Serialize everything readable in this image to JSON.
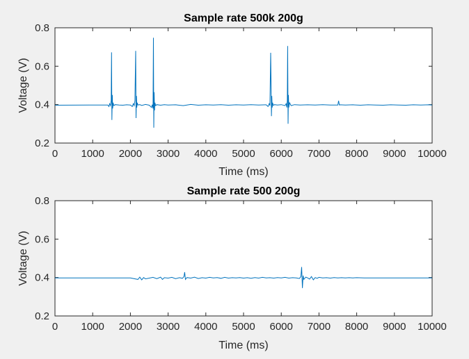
{
  "chart_data": [
    {
      "type": "line",
      "title": "Sample rate 500k 200g",
      "xlabel": "Time (ms)",
      "ylabel": "Voltage (V)",
      "xlim": [
        0,
        10000
      ],
      "ylim": [
        0.2,
        0.8
      ],
      "xticks": [
        0,
        1000,
        2000,
        3000,
        4000,
        5000,
        6000,
        7000,
        8000,
        9000,
        10000
      ],
      "xtick_labels": [
        "0",
        "1000",
        "2000",
        "3000",
        "4000",
        "5000",
        "6000",
        "7000",
        "8000",
        "9000",
        "10000"
      ],
      "yticks": [
        0.2,
        0.4,
        0.6,
        0.8
      ],
      "ytick_labels": [
        "0.2",
        "0.4",
        "0.6",
        "0.8"
      ],
      "grid": false,
      "line_color": "#0072bd",
      "series": [
        {
          "x": [
            0,
            1400,
            1430,
            1450,
            1470,
            1490,
            1500,
            1510,
            1520,
            1530,
            1540,
            1560,
            1600,
            1700,
            1800,
            1900,
            2000,
            2050,
            2080,
            2100,
            2120,
            2140,
            2150,
            2160,
            2170,
            2180,
            2200,
            2250,
            2300,
            2400,
            2500,
            2560,
            2580,
            2600,
            2610,
            2620,
            2630,
            2640,
            2650,
            2670,
            2700,
            2800,
            2900,
            3000,
            3200,
            3400,
            3600,
            3800,
            4000,
            4200,
            4400,
            4600,
            4800,
            5000,
            5200,
            5400,
            5600,
            5650,
            5680,
            5700,
            5720,
            5740,
            5750,
            5760,
            5770,
            5790,
            5820,
            5900,
            6000,
            6100,
            6130,
            6150,
            6160,
            6170,
            6180,
            6190,
            6200,
            6220,
            6260,
            6350,
            6500,
            6700,
            6900,
            7100,
            7300,
            7500,
            7520,
            7540,
            7560,
            7700,
            7900,
            8100,
            8300,
            8500,
            8700,
            8900,
            9100,
            9300,
            9500,
            9700,
            9900,
            10000
          ],
          "y": [
            0.397,
            0.398,
            0.39,
            0.405,
            0.395,
            0.42,
            0.672,
            0.32,
            0.45,
            0.38,
            0.41,
            0.395,
            0.4,
            0.398,
            0.397,
            0.399,
            0.398,
            0.39,
            0.405,
            0.395,
            0.42,
            0.68,
            0.33,
            0.445,
            0.385,
            0.41,
            0.398,
            0.4,
            0.396,
            0.401,
            0.397,
            0.385,
            0.4,
            0.38,
            0.748,
            0.28,
            0.465,
            0.37,
            0.41,
            0.395,
            0.4,
            0.397,
            0.4,
            0.398,
            0.399,
            0.395,
            0.401,
            0.397,
            0.399,
            0.398,
            0.4,
            0.397,
            0.399,
            0.398,
            0.4,
            0.398,
            0.399,
            0.39,
            0.405,
            0.395,
            0.67,
            0.34,
            0.445,
            0.385,
            0.41,
            0.396,
            0.4,
            0.398,
            0.4,
            0.395,
            0.405,
            0.385,
            0.42,
            0.705,
            0.3,
            0.45,
            0.385,
            0.41,
            0.395,
            0.4,
            0.398,
            0.399,
            0.398,
            0.4,
            0.398,
            0.398,
            0.42,
            0.398,
            0.399,
            0.398,
            0.399,
            0.397,
            0.399,
            0.398,
            0.397,
            0.399,
            0.398,
            0.397,
            0.399,
            0.398,
            0.399,
            0.398
          ]
        }
      ]
    },
    {
      "type": "line",
      "title": "Sample rate 500 200g",
      "xlabel": "Time (ms)",
      "ylabel": "Voltage (V)",
      "xlim": [
        0,
        10000
      ],
      "ylim": [
        0.2,
        0.8
      ],
      "xticks": [
        0,
        1000,
        2000,
        3000,
        4000,
        5000,
        6000,
        7000,
        8000,
        9000,
        10000
      ],
      "xtick_labels": [
        "0",
        "1000",
        "2000",
        "3000",
        "4000",
        "5000",
        "6000",
        "7000",
        "8000",
        "9000",
        "10000"
      ],
      "yticks": [
        0.2,
        0.4,
        0.6,
        0.8
      ],
      "ytick_labels": [
        "0.2",
        "0.4",
        "0.6",
        "0.8"
      ],
      "grid": false,
      "line_color": "#0072bd",
      "series": [
        {
          "x": [
            0,
            1000,
            2000,
            2200,
            2250,
            2300,
            2350,
            2400,
            2500,
            2600,
            2700,
            2800,
            2850,
            2900,
            3000,
            3100,
            3200,
            3300,
            3380,
            3420,
            3440,
            3460,
            3500,
            3600,
            3700,
            3800,
            3900,
            4000,
            4100,
            4200,
            4300,
            4400,
            4500,
            4600,
            4700,
            4800,
            4900,
            5000,
            5100,
            5200,
            5300,
            5400,
            5500,
            5600,
            5700,
            5800,
            5900,
            6000,
            6100,
            6200,
            6300,
            6400,
            6480,
            6520,
            6540,
            6560,
            6580,
            6600,
            6650,
            6700,
            6750,
            6800,
            6850,
            6900,
            6950,
            7000,
            7100,
            7200,
            7300,
            7400,
            7500,
            7600,
            7700,
            7800,
            7900,
            8000,
            8200,
            8500,
            8800,
            9100,
            9400,
            9700,
            10000
          ],
          "y": [
            0.398,
            0.398,
            0.398,
            0.39,
            0.402,
            0.388,
            0.4,
            0.393,
            0.397,
            0.401,
            0.394,
            0.402,
            0.39,
            0.399,
            0.397,
            0.401,
            0.394,
            0.399,
            0.396,
            0.405,
            0.428,
            0.39,
            0.4,
            0.397,
            0.402,
            0.395,
            0.399,
            0.397,
            0.401,
            0.398,
            0.4,
            0.396,
            0.401,
            0.397,
            0.399,
            0.398,
            0.4,
            0.397,
            0.399,
            0.396,
            0.4,
            0.397,
            0.401,
            0.398,
            0.399,
            0.397,
            0.4,
            0.398,
            0.401,
            0.397,
            0.399,
            0.398,
            0.395,
            0.405,
            0.455,
            0.345,
            0.41,
            0.39,
            0.402,
            0.398,
            0.392,
            0.405,
            0.388,
            0.4,
            0.396,
            0.401,
            0.398,
            0.399,
            0.397,
            0.4,
            0.398,
            0.399,
            0.398,
            0.399,
            0.398,
            0.399,
            0.398,
            0.398,
            0.398,
            0.398,
            0.398,
            0.398,
            0.398
          ]
        }
      ]
    }
  ]
}
